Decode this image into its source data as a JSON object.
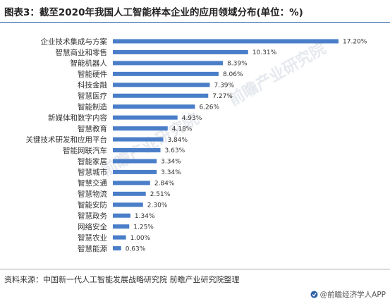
{
  "title": "图表3：截至2020年我国人工智能样本企业的应用领域分布(单位：%)",
  "source": "资料来源：中国新一代人工智能发展战略研究院 前瞻产业研究院整理",
  "brand": "@前瞻经济学人APP",
  "watermark": "前瞻产业研究院",
  "colors": {
    "bar": "#4a7ec8",
    "accent": "#2b5fa8"
  },
  "chart_data": {
    "type": "bar",
    "orientation": "horizontal",
    "categories": [
      "企业技术集成与方案",
      "智慧商业和零售",
      "智能机器人",
      "智能硬件",
      "科技金融",
      "智慧医疗",
      "智能制造",
      "新媒体和数字内容",
      "智慧教育",
      "关键技术研发和应用平台",
      "智能网联汽车",
      "智能家居",
      "智慧城市",
      "智慧交通",
      "智慧物流",
      "智能安防",
      "智慧政务",
      "网络安全",
      "智慧农业",
      "智慧能源"
    ],
    "values": [
      17.2,
      10.31,
      8.39,
      8.06,
      7.39,
      7.27,
      6.26,
      4.93,
      4.18,
      3.84,
      3.63,
      3.34,
      3.34,
      2.84,
      2.51,
      2.3,
      1.34,
      1.25,
      1.0,
      0.63
    ],
    "value_labels": [
      "17.20%",
      "10.31%",
      "8.39%",
      "8.06%",
      "7.39%",
      "7.27%",
      "6.26%",
      "4.93%",
      "4.18%",
      "3.84%",
      "3.63%",
      "3.34%",
      "3.34%",
      "2.84%",
      "2.51%",
      "2.30%",
      "1.34%",
      "1.25%",
      "1.00%",
      "0.63%"
    ],
    "xlim": [
      0,
      17.2
    ],
    "grid": false,
    "legend": "none"
  }
}
